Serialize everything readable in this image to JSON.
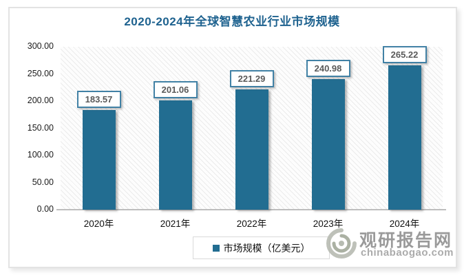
{
  "title": "2020-2024年全球智慧农业行业市场规模",
  "chart_data": {
    "type": "bar",
    "title": "2020-2024年全球智慧农业行业市场规模",
    "categories": [
      "2020年",
      "2021年",
      "2022年",
      "2023年",
      "2024年"
    ],
    "values": [
      183.57,
      201.06,
      221.29,
      240.98,
      265.22
    ],
    "value_labels": [
      "183.57",
      "201.06",
      "221.29",
      "240.98",
      "265.22"
    ],
    "xlabel": "",
    "ylabel": "",
    "ylim": [
      0,
      300
    ],
    "ytick_labels": [
      "300.00",
      "250.00",
      "200.00",
      "150.00",
      "100.00",
      "50.00",
      "0.00"
    ],
    "grid": false,
    "legend": [
      "市场规模（亿美元）"
    ],
    "legend_position": "bottom",
    "bar_color": "#226d91"
  },
  "legend": {
    "label": "市场规模（亿美元）"
  },
  "watermark": {
    "site_name": "观研报告网",
    "site_url": "chinabaogao.com",
    "logo_icon": "swirl-eye-logo"
  },
  "colors": {
    "title": "#1e628f",
    "bar": "#226d91",
    "value_text": "#595959",
    "value_box_border": "#4181a5",
    "watermark_gray": "#9a9a9a",
    "card_border": "#e3e3e3"
  }
}
